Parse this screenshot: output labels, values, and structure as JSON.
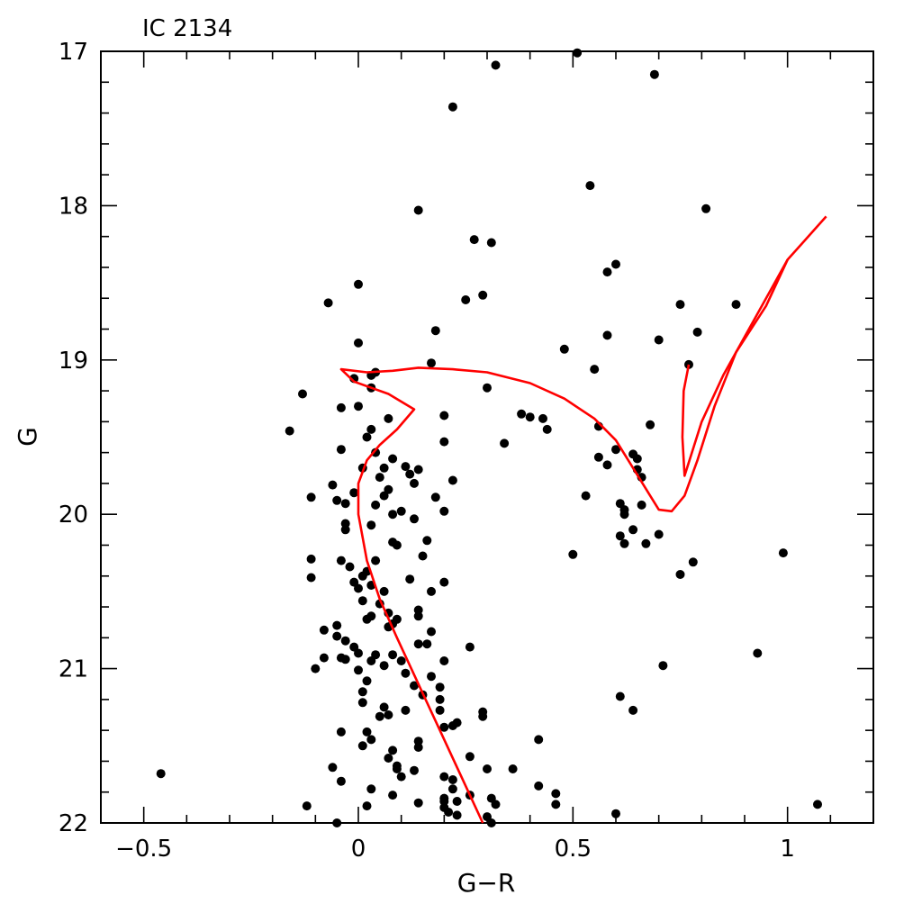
{
  "chart_data": {
    "type": "scatter",
    "title": "IC 2134",
    "xlabel": "G−R",
    "ylabel": "G",
    "xlim": [
      -0.6,
      1.2
    ],
    "ylim": [
      17,
      22
    ],
    "y_inverted": true,
    "grid": false,
    "x_ticks": [
      -0.5,
      0,
      0.5,
      1
    ],
    "x_tick_labels": [
      "−0.5",
      "0",
      "0.5",
      "1"
    ],
    "y_ticks": [
      17,
      18,
      19,
      20,
      21,
      22
    ],
    "y_tick_labels": [
      "17",
      "18",
      "19",
      "20",
      "21",
      "22"
    ],
    "colors": {
      "points": "#000000",
      "isochrone": "#ff0000",
      "frame": "#000000"
    },
    "series": [
      {
        "kind": "points",
        "points": [
          [
            0.51,
            17.01
          ],
          [
            0.32,
            17.09
          ],
          [
            0.69,
            17.15
          ],
          [
            0.22,
            17.36
          ],
          [
            0.54,
            17.87
          ],
          [
            0.14,
            18.03
          ],
          [
            0.81,
            18.02
          ],
          [
            0.27,
            18.22
          ],
          [
            0.31,
            18.24
          ],
          [
            0.6,
            18.38
          ],
          [
            0.58,
            18.43
          ],
          [
            0.0,
            18.51
          ],
          [
            0.25,
            18.61
          ],
          [
            0.29,
            18.58
          ],
          [
            -0.07,
            18.63
          ],
          [
            0.75,
            18.64
          ],
          [
            0.88,
            18.64
          ],
          [
            0.18,
            18.81
          ],
          [
            0.58,
            18.84
          ],
          [
            0.79,
            18.82
          ],
          [
            0.0,
            18.89
          ],
          [
            0.7,
            18.87
          ],
          [
            0.48,
            18.93
          ],
          [
            0.77,
            19.03
          ],
          [
            0.17,
            19.02
          ],
          [
            0.55,
            19.06
          ],
          [
            0.04,
            19.08
          ],
          [
            0.03,
            19.1
          ],
          [
            -0.01,
            19.12
          ],
          [
            0.3,
            19.18
          ],
          [
            0.03,
            19.18
          ],
          [
            -0.13,
            19.22
          ],
          [
            0.0,
            19.3
          ],
          [
            -0.04,
            19.31
          ],
          [
            0.38,
            19.35
          ],
          [
            0.4,
            19.37
          ],
          [
            0.43,
            19.38
          ],
          [
            0.07,
            19.38
          ],
          [
            0.2,
            19.36
          ],
          [
            0.44,
            19.45
          ],
          [
            0.56,
            19.43
          ],
          [
            -0.16,
            19.46
          ],
          [
            0.68,
            19.42
          ],
          [
            0.02,
            19.5
          ],
          [
            0.03,
            19.45
          ],
          [
            0.2,
            19.53
          ],
          [
            0.34,
            19.54
          ],
          [
            0.6,
            19.58
          ],
          [
            -0.04,
            19.58
          ],
          [
            0.04,
            19.6
          ],
          [
            0.56,
            19.63
          ],
          [
            0.64,
            19.61
          ],
          [
            0.65,
            19.64
          ],
          [
            0.08,
            19.64
          ],
          [
            0.11,
            19.69
          ],
          [
            0.06,
            19.7
          ],
          [
            0.14,
            19.71
          ],
          [
            0.58,
            19.68
          ],
          [
            0.65,
            19.71
          ],
          [
            0.66,
            19.76
          ],
          [
            0.01,
            19.7
          ],
          [
            0.05,
            19.76
          ],
          [
            0.12,
            19.74
          ],
          [
            0.13,
            19.8
          ],
          [
            -0.06,
            19.81
          ],
          [
            0.22,
            19.78
          ],
          [
            0.07,
            19.84
          ],
          [
            -0.01,
            19.86
          ],
          [
            0.06,
            19.88
          ],
          [
            -0.11,
            19.89
          ],
          [
            -0.05,
            19.91
          ],
          [
            0.18,
            19.89
          ],
          [
            0.53,
            19.88
          ],
          [
            0.04,
            19.94
          ],
          [
            -0.03,
            19.93
          ],
          [
            0.61,
            19.93
          ],
          [
            0.66,
            19.94
          ],
          [
            0.62,
            19.97
          ],
          [
            0.62,
            20.0
          ],
          [
            0.1,
            19.98
          ],
          [
            0.2,
            19.98
          ],
          [
            0.08,
            20.0
          ],
          [
            0.13,
            20.03
          ],
          [
            -0.03,
            20.06
          ],
          [
            0.03,
            20.07
          ],
          [
            -0.03,
            20.1
          ],
          [
            0.64,
            20.1
          ],
          [
            0.61,
            20.14
          ],
          [
            0.7,
            20.13
          ],
          [
            0.08,
            20.18
          ],
          [
            0.16,
            20.17
          ],
          [
            0.09,
            20.2
          ],
          [
            0.62,
            20.19
          ],
          [
            0.67,
            20.19
          ],
          [
            0.5,
            20.26
          ],
          [
            0.99,
            20.25
          ],
          [
            0.15,
            20.27
          ],
          [
            -0.11,
            20.29
          ],
          [
            -0.04,
            20.3
          ],
          [
            0.04,
            20.3
          ],
          [
            0.78,
            20.31
          ],
          [
            -0.02,
            20.34
          ],
          [
            0.02,
            20.37
          ],
          [
            0.75,
            20.39
          ],
          [
            0.01,
            20.4
          ],
          [
            -0.11,
            20.41
          ],
          [
            0.12,
            20.42
          ],
          [
            0.2,
            20.44
          ],
          [
            -0.01,
            20.44
          ],
          [
            0.03,
            20.46
          ],
          [
            0.0,
            20.48
          ],
          [
            0.06,
            20.5
          ],
          [
            0.17,
            20.5
          ],
          [
            0.01,
            20.56
          ],
          [
            0.05,
            20.58
          ],
          [
            0.14,
            20.62
          ],
          [
            0.07,
            20.64
          ],
          [
            0.03,
            20.66
          ],
          [
            0.02,
            20.68
          ],
          [
            0.14,
            20.66
          ],
          [
            0.09,
            20.68
          ],
          [
            0.08,
            20.71
          ],
          [
            0.07,
            20.73
          ],
          [
            -0.05,
            20.72
          ],
          [
            -0.08,
            20.75
          ],
          [
            0.17,
            20.76
          ],
          [
            -0.05,
            20.79
          ],
          [
            -0.03,
            20.82
          ],
          [
            0.14,
            20.84
          ],
          [
            0.16,
            20.84
          ],
          [
            0.26,
            20.86
          ],
          [
            -0.01,
            20.86
          ],
          [
            0.0,
            20.9
          ],
          [
            0.04,
            20.91
          ],
          [
            0.08,
            20.91
          ],
          [
            0.93,
            20.9
          ],
          [
            -0.08,
            20.93
          ],
          [
            -0.04,
            20.93
          ],
          [
            -0.03,
            20.94
          ],
          [
            0.03,
            20.95
          ],
          [
            0.1,
            20.95
          ],
          [
            0.2,
            20.95
          ],
          [
            0.06,
            20.98
          ],
          [
            0.71,
            20.98
          ],
          [
            -0.1,
            21.0
          ],
          [
            0.0,
            21.01
          ],
          [
            0.11,
            21.03
          ],
          [
            0.17,
            21.05
          ],
          [
            0.02,
            21.08
          ],
          [
            0.13,
            21.11
          ],
          [
            0.19,
            21.12
          ],
          [
            0.01,
            21.15
          ],
          [
            0.15,
            21.17
          ],
          [
            0.19,
            21.2
          ],
          [
            0.61,
            21.18
          ],
          [
            0.01,
            21.22
          ],
          [
            0.06,
            21.25
          ],
          [
            0.11,
            21.27
          ],
          [
            0.19,
            21.27
          ],
          [
            0.64,
            21.27
          ],
          [
            0.29,
            21.28
          ],
          [
            0.07,
            21.3
          ],
          [
            0.05,
            21.31
          ],
          [
            0.29,
            21.31
          ],
          [
            0.23,
            21.35
          ],
          [
            0.22,
            21.37
          ],
          [
            0.2,
            21.38
          ],
          [
            0.02,
            21.41
          ],
          [
            -0.04,
            21.41
          ],
          [
            0.03,
            21.46
          ],
          [
            0.14,
            21.47
          ],
          [
            0.42,
            21.46
          ],
          [
            0.01,
            21.5
          ],
          [
            0.14,
            21.51
          ],
          [
            0.08,
            21.53
          ],
          [
            0.26,
            21.57
          ],
          [
            0.07,
            21.58
          ],
          [
            0.09,
            21.63
          ],
          [
            -0.06,
            21.64
          ],
          [
            0.3,
            21.65
          ],
          [
            0.36,
            21.65
          ],
          [
            0.09,
            21.65
          ],
          [
            0.13,
            21.66
          ],
          [
            -0.46,
            21.68
          ],
          [
            0.2,
            21.7
          ],
          [
            0.1,
            21.7
          ],
          [
            -0.04,
            21.73
          ],
          [
            0.22,
            21.72
          ],
          [
            0.42,
            21.76
          ],
          [
            0.03,
            21.78
          ],
          [
            0.22,
            21.78
          ],
          [
            0.46,
            21.81
          ],
          [
            0.08,
            21.82
          ],
          [
            0.26,
            21.82
          ],
          [
            0.2,
            21.84
          ],
          [
            0.31,
            21.84
          ],
          [
            0.2,
            21.86
          ],
          [
            0.23,
            21.86
          ],
          [
            0.14,
            21.87
          ],
          [
            0.46,
            21.88
          ],
          [
            0.32,
            21.88
          ],
          [
            -0.12,
            21.89
          ],
          [
            0.02,
            21.89
          ],
          [
            1.07,
            21.88
          ],
          [
            0.2,
            21.9
          ],
          [
            0.21,
            21.93
          ],
          [
            0.6,
            21.94
          ],
          [
            0.3,
            21.96
          ],
          [
            0.23,
            21.95
          ],
          [
            -0.05,
            22.0
          ],
          [
            0.31,
            22.0
          ]
        ]
      },
      {
        "kind": "line",
        "points": [
          [
            0.29,
            22.0
          ],
          [
            0.24,
            21.7
          ],
          [
            0.19,
            21.4
          ],
          [
            0.14,
            21.1
          ],
          [
            0.09,
            20.8
          ],
          [
            0.05,
            20.55
          ],
          [
            0.02,
            20.3
          ],
          [
            0.0,
            20.0
          ],
          [
            0.0,
            19.8
          ],
          [
            0.02,
            19.65
          ],
          [
            0.05,
            19.55
          ],
          [
            0.09,
            19.45
          ],
          [
            0.13,
            19.32
          ],
          [
            0.07,
            19.22
          ],
          [
            -0.01,
            19.14
          ],
          [
            -0.04,
            19.06
          ],
          [
            0.02,
            19.08
          ],
          [
            0.08,
            19.07
          ],
          [
            0.14,
            19.05
          ],
          [
            0.22,
            19.06
          ],
          [
            0.3,
            19.08
          ],
          [
            0.4,
            19.15
          ],
          [
            0.48,
            19.25
          ],
          [
            0.55,
            19.38
          ],
          [
            0.6,
            19.52
          ],
          [
            0.64,
            19.7
          ],
          [
            0.68,
            19.88
          ],
          [
            0.7,
            19.97
          ],
          [
            0.73,
            19.98
          ],
          [
            0.76,
            19.88
          ],
          [
            0.79,
            19.65
          ],
          [
            0.83,
            19.3
          ],
          [
            0.88,
            18.95
          ],
          [
            0.95,
            18.65
          ],
          [
            1.0,
            18.35
          ],
          [
            1.09,
            18.07
          ]
        ]
      },
      {
        "kind": "line",
        "points": [
          [
            1.0,
            18.35
          ],
          [
            0.96,
            18.55
          ],
          [
            0.9,
            18.85
          ],
          [
            0.85,
            19.1
          ],
          [
            0.8,
            19.4
          ],
          [
            0.76,
            19.75
          ],
          [
            0.755,
            19.5
          ],
          [
            0.758,
            19.2
          ],
          [
            0.77,
            19.03
          ]
        ]
      }
    ]
  }
}
